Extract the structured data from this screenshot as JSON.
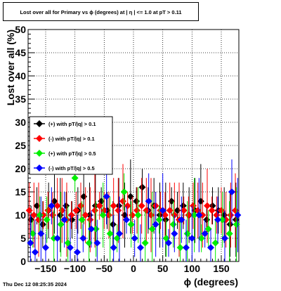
{
  "title": "Lost over all for Primary vs ϕ (degrees) at |  η  | <= 1.0 at pT > 0.11",
  "footer_timestamp": "Thu Dec 12 08:25:35 2024",
  "chart_data": {
    "type": "scatter",
    "xlabel": "ϕ (degrees)",
    "ylabel": "Lost over all (%)",
    "xlim": [
      -180,
      180
    ],
    "ylim": [
      0,
      50
    ],
    "x_ticks": [
      -150,
      -100,
      -50,
      0,
      50,
      100,
      150
    ],
    "x_tick_labels": [
      "−150",
      "−100",
      "−50",
      "0",
      "50",
      "100",
      "150"
    ],
    "y_ticks": [
      0,
      5,
      10,
      15,
      20,
      25,
      30,
      35,
      40,
      45,
      50
    ],
    "y_tick_labels": [
      "0",
      "5",
      "10",
      "15",
      "20",
      "25",
      "30",
      "35",
      "40",
      "45",
      "50"
    ],
    "grid": true,
    "legend_position": "middle-left",
    "series": [
      {
        "name": "(+) with pT/|q| > 0.1",
        "color": "#000000",
        "marker": "diamond",
        "x": [
          -175,
          -165,
          -155,
          -145,
          -135,
          -125,
          -115,
          -105,
          -95,
          -85,
          -75,
          -65,
          -55,
          -45,
          -35,
          -25,
          -15,
          -5,
          5,
          15,
          25,
          35,
          45,
          55,
          65,
          75,
          85,
          95,
          105,
          115,
          125,
          135,
          145,
          155,
          165,
          175
        ],
        "y": [
          9,
          12,
          8,
          11,
          13,
          10,
          12,
          9,
          11,
          14,
          10,
          12,
          13,
          11,
          8,
          12,
          10,
          14,
          13,
          16,
          11,
          12,
          10,
          9,
          13,
          11,
          12,
          10,
          11,
          13,
          9,
          12,
          11,
          10,
          8,
          9
        ]
      },
      {
        "name": "(-) with pT/|q| > 0.1",
        "color": "#ff0000",
        "marker": "diamond",
        "x": [
          -178,
          -170,
          -162,
          -154,
          -146,
          -138,
          -130,
          -122,
          -114,
          -106,
          -98,
          -90,
          -82,
          -74,
          -66,
          -58,
          -50,
          -42,
          -34,
          -26,
          -18,
          -10,
          -2,
          6,
          14,
          22,
          30,
          38,
          46,
          54,
          62,
          70,
          78,
          86,
          94,
          102,
          110,
          118,
          126,
          134,
          142,
          150,
          158,
          166,
          174
        ],
        "y": [
          11,
          10,
          9,
          10,
          11,
          10,
          12,
          11,
          9,
          10,
          11,
          12,
          10,
          9,
          11,
          12,
          11,
          10,
          12,
          11,
          13,
          12,
          10,
          11,
          12,
          11,
          10,
          12,
          11,
          10,
          11,
          10,
          9,
          11,
          10,
          12,
          11,
          10,
          12,
          11,
          10,
          11,
          9,
          10,
          11
        ]
      },
      {
        "name": "(+) with pT/|q| > 0.5",
        "color": "#00ee00",
        "marker": "diamond",
        "x": [
          -172,
          -160,
          -148,
          -136,
          -124,
          -112,
          -100,
          -88,
          -76,
          -64,
          -52,
          -40,
          -28,
          -16,
          -4,
          8,
          20,
          32,
          44,
          56,
          68,
          80,
          92,
          104,
          116,
          128,
          140,
          152,
          164,
          176
        ],
        "y": [
          6,
          10,
          9,
          5,
          8,
          4,
          18,
          9,
          4,
          7,
          10,
          6,
          5,
          15,
          8,
          10,
          4,
          7,
          9,
          5,
          8,
          3,
          6,
          10,
          5,
          7,
          4,
          9,
          6,
          8
        ]
      },
      {
        "name": "(-) with pT/|q| > 0.5",
        "color": "#0000ff",
        "marker": "diamond",
        "x": [
          -176,
          -168,
          -158,
          -150,
          -140,
          -130,
          -118,
          -108,
          -96,
          -86,
          -72,
          -62,
          -46,
          -34,
          -24,
          -12,
          2,
          12,
          26,
          38,
          50,
          60,
          70,
          82,
          90,
          100,
          112,
          122,
          132,
          144,
          156,
          168,
          178
        ],
        "y": [
          4,
          2,
          6,
          3,
          12,
          5,
          9,
          3,
          2,
          5,
          7,
          4,
          14,
          3,
          6,
          9,
          5,
          3,
          13,
          8,
          11,
          4,
          6,
          9,
          3,
          5,
          10,
          6,
          3,
          9,
          5,
          15,
          10
        ]
      }
    ]
  }
}
